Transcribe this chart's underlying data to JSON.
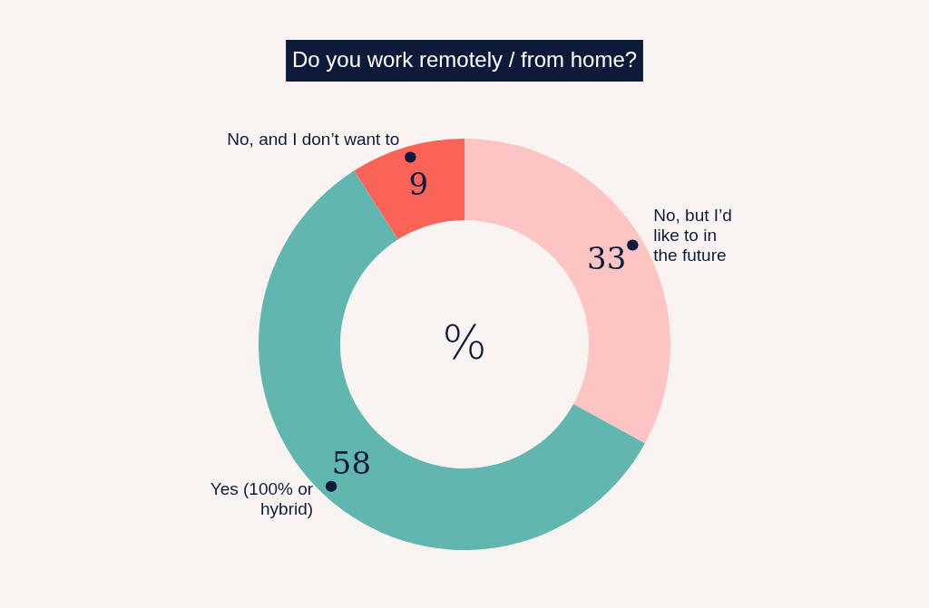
{
  "chart_data": {
    "type": "donut",
    "title": "Do you work remotely / from home?",
    "categories": [
      "No, but I’d like to in the future",
      "Yes (100% or hybrid)",
      "No, and I don’t want to"
    ],
    "values": [
      33,
      58,
      9
    ],
    "colors": [
      "#fcc4c2",
      "#62b6b0",
      "#fa6458"
    ],
    "data_labels": true,
    "annotations": [
      "%"
    ]
  }
}
